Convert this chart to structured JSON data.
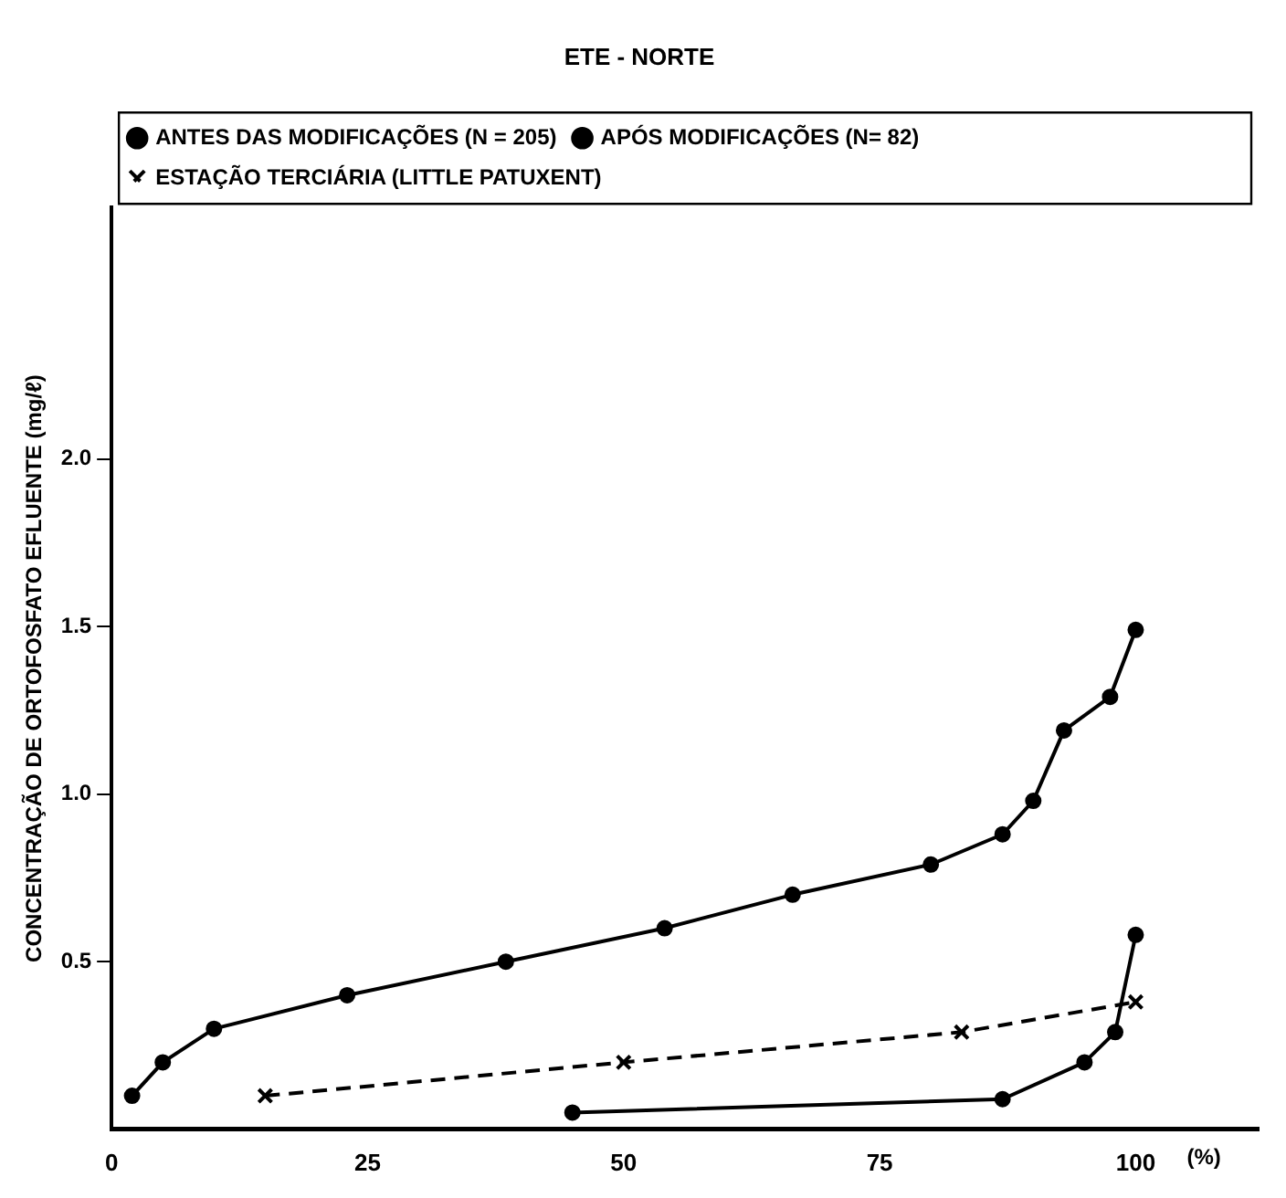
{
  "chart_data": {
    "type": "line",
    "title": "ETE - NORTE",
    "xlabel": "(%)",
    "ylabel": "CONCENTRAÇÃO DE ORTOFOSFATO EFLUENTE (mg/ℓ)",
    "xlim": [
      0,
      112
    ],
    "xticks": [
      0,
      25,
      50,
      75,
      100
    ],
    "ylim": [
      0,
      2.75
    ],
    "yticks": [
      {
        "value": 0.5,
        "label": "0.5"
      },
      {
        "value": 1,
        "label": "1.0"
      },
      {
        "value": 1.5,
        "label": "1.5"
      },
      {
        "value": 2,
        "label": "2.0"
      }
    ],
    "grid": false,
    "legend": "top left",
    "series": [
      {
        "name": "ANTES DAS MODIFICAÇÕES (N = 205)",
        "color": "#000000",
        "marker": "circle",
        "line_style": "solid",
        "x": [
          2,
          5,
          10,
          23,
          38.5,
          54,
          66.5,
          80,
          87,
          90,
          93,
          97.5,
          100
        ],
        "values": [
          0.1,
          0.2,
          0.3,
          0.4,
          0.5,
          0.6,
          0.7,
          0.79,
          0.88,
          0.98,
          1.19,
          1.29,
          1.49
        ]
      },
      {
        "name": "APÓS MODIFICAÇÕES (N= 82)",
        "color": "#000000",
        "marker": "circle",
        "line_style": "solid",
        "x": [
          45,
          87,
          95,
          98,
          100
        ],
        "values": [
          0.05,
          0.09,
          0.2,
          0.29,
          0.58
        ]
      },
      {
        "name": "ESTAÇÃO TERCIÁRIA (LITTLE PATUXENT)",
        "color": "#000000",
        "marker": "cross",
        "line_style": "dashed",
        "x": [
          15,
          50,
          83,
          100
        ],
        "values": [
          0.1,
          0.2,
          0.29,
          0.38
        ]
      }
    ]
  }
}
